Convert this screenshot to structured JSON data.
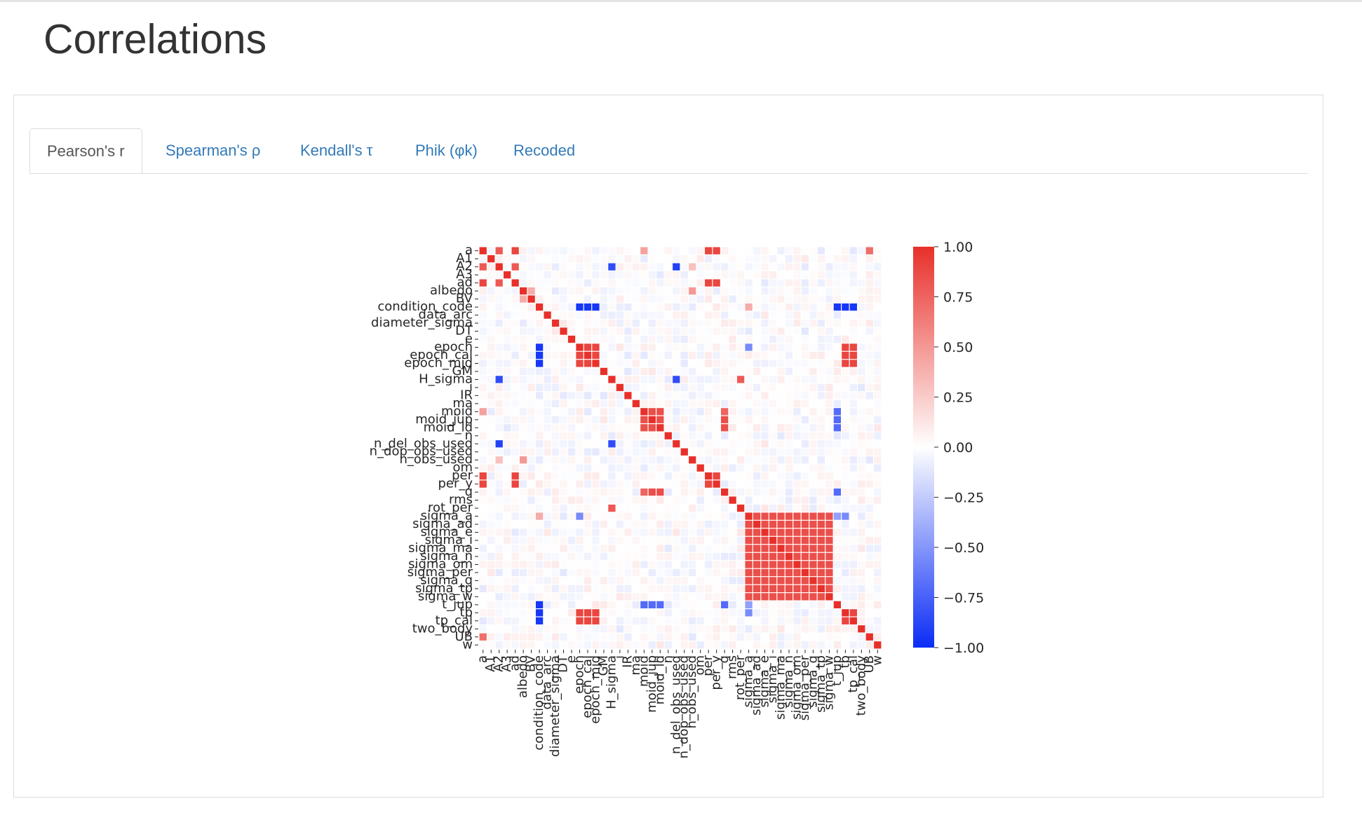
{
  "page": {
    "title": "Correlations"
  },
  "tabs": [
    {
      "label": "Pearson's r",
      "active": true
    },
    {
      "label": "Spearman's ρ",
      "active": false
    },
    {
      "label": "Kendall's τ",
      "active": false
    },
    {
      "label": "Phik (φk)",
      "active": false
    },
    {
      "label": "Recoded",
      "active": false
    }
  ],
  "colors": {
    "link": "#337ab7",
    "positive": "#e8302a",
    "neutral": "#ffffff",
    "negative": "#0a2cf5"
  },
  "chart_data": {
    "type": "heatmap",
    "title": "",
    "variables": [
      "a",
      "A1",
      "A2",
      "A3",
      "ad",
      "albedo",
      "BV",
      "condition_code",
      "data_arc",
      "diameter_sigma",
      "DT",
      "e",
      "epoch",
      "epoch_cal",
      "epoch_mjd",
      "GM",
      "H_sigma",
      "i",
      "IR",
      "ma",
      "moid",
      "moid_jup",
      "moid_ld",
      "n",
      "n_del_obs_used",
      "n_dop_obs_used",
      "n_obs_used",
      "om",
      "per",
      "per_y",
      "q",
      "rms",
      "rot_per",
      "sigma_a",
      "sigma_ad",
      "sigma_e",
      "sigma_i",
      "sigma_ma",
      "sigma_n",
      "sigma_om",
      "sigma_per",
      "sigma_q",
      "sigma_tp",
      "sigma_w",
      "t_jup",
      "tp",
      "tp_cal",
      "two_body",
      "UB",
      "w"
    ],
    "colorbar": {
      "min": -1.0,
      "max": 1.0,
      "ticks": [
        "1.00",
        "0.75",
        "0.50",
        "0.25",
        "0.00",
        "−0.25",
        "−0.50",
        "−0.75",
        "−1.00"
      ]
    },
    "correlation_groups": [
      {
        "members": [
          "a",
          "ad",
          "per",
          "per_y"
        ],
        "value": 0.9
      },
      {
        "members": [
          "epoch",
          "epoch_cal",
          "epoch_mjd",
          "tp",
          "tp_cal"
        ],
        "value": 0.9
      },
      {
        "members": [
          "moid",
          "moid_jup",
          "moid_ld",
          "q"
        ],
        "value": 0.85
      },
      {
        "members": [
          "sigma_a",
          "sigma_ad",
          "sigma_e",
          "sigma_i",
          "sigma_ma",
          "sigma_n",
          "sigma_om",
          "sigma_per",
          "sigma_q",
          "sigma_tp",
          "sigma_w"
        ],
        "value": 0.85
      }
    ],
    "strong_pairs": [
      {
        "x": "condition_code",
        "y": "epoch",
        "value": -0.95
      },
      {
        "x": "condition_code",
        "y": "epoch_cal",
        "value": -0.95
      },
      {
        "x": "condition_code",
        "y": "epoch_mjd",
        "value": -0.95
      },
      {
        "x": "condition_code",
        "y": "tp",
        "value": -0.95
      },
      {
        "x": "condition_code",
        "y": "tp_cal",
        "value": -0.95
      },
      {
        "x": "condition_code",
        "y": "t_jup",
        "value": -0.95
      },
      {
        "x": "A2",
        "y": "n_del_obs_used",
        "value": -0.9
      },
      {
        "x": "A2",
        "y": "H_sigma",
        "value": -0.85
      },
      {
        "x": "n_del_obs_used",
        "y": "H_sigma",
        "value": -0.85
      },
      {
        "x": "t_jup",
        "y": "moid",
        "value": -0.7
      },
      {
        "x": "t_jup",
        "y": "moid_jup",
        "value": -0.7
      },
      {
        "x": "t_jup",
        "y": "moid_ld",
        "value": -0.7
      },
      {
        "x": "t_jup",
        "y": "q",
        "value": -0.7
      },
      {
        "x": "sigma_a",
        "y": "epoch",
        "value": -0.55
      },
      {
        "x": "sigma_a",
        "y": "tp",
        "value": -0.55
      },
      {
        "x": "sigma_a",
        "y": "t_jup",
        "value": -0.45
      },
      {
        "x": "moid",
        "y": "a",
        "value": 0.45
      },
      {
        "x": "moid",
        "y": "q",
        "value": 0.75
      },
      {
        "x": "a",
        "y": "A2",
        "value": 0.8
      },
      {
        "x": "ad",
        "y": "A2",
        "value": 0.8
      },
      {
        "x": "a",
        "y": "UB",
        "value": 0.7
      },
      {
        "x": "H_sigma",
        "y": "rot_per",
        "value": 0.8
      },
      {
        "x": "albedo",
        "y": "BV",
        "value": 0.4
      },
      {
        "x": "albedo",
        "y": "n_obs_used",
        "value": 0.5
      },
      {
        "x": "condition_code",
        "y": "sigma_a",
        "value": 0.4
      },
      {
        "x": "A2",
        "y": "n_obs_used",
        "value": 0.3
      }
    ]
  }
}
